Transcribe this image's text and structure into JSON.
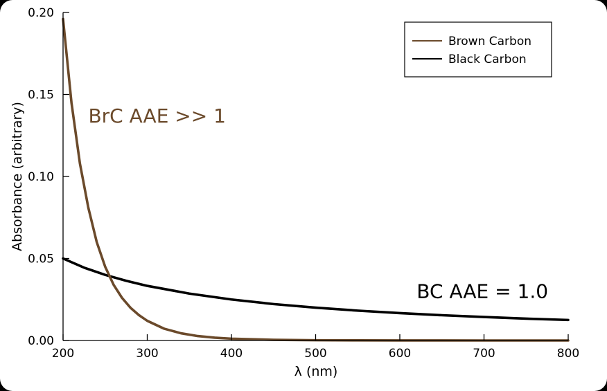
{
  "chart_data": {
    "type": "line",
    "title": "",
    "xlabel": "λ (nm)",
    "ylabel": "Absorbance (arbitrary)",
    "xlim": [
      200,
      800
    ],
    "ylim": [
      0.0,
      0.2
    ],
    "x_ticks": [
      200,
      300,
      400,
      500,
      600,
      700,
      800
    ],
    "x_tick_labels": [
      "200",
      "300",
      "400",
      "500",
      "600",
      "700",
      "800"
    ],
    "y_ticks": [
      0.0,
      0.05,
      0.1,
      0.15,
      0.2
    ],
    "y_tick_labels": [
      "0.00",
      "0.05",
      "0.10",
      "0.15",
      "0.20"
    ],
    "grid": false,
    "legend_position": "top-right",
    "series": [
      {
        "name": "Brown Carbon",
        "color": "#6b4a2b",
        "x": [
          200,
          210,
          220,
          230,
          240,
          250,
          260,
          270,
          280,
          290,
          300,
          320,
          340,
          360,
          380,
          400,
          450,
          500,
          550,
          600,
          650,
          700,
          750,
          800
        ],
        "y": [
          0.196,
          0.145,
          0.108,
          0.081,
          0.06,
          0.045,
          0.034,
          0.026,
          0.02,
          0.0155,
          0.012,
          0.0072,
          0.0044,
          0.0027,
          0.0017,
          0.0011,
          0.0004,
          0.00016,
          7e-05,
          3e-05,
          1e-05,
          0.0,
          0.0,
          0.0
        ]
      },
      {
        "name": "Black Carbon",
        "color": "#000000",
        "x": [
          200,
          225,
          250,
          275,
          300,
          350,
          400,
          450,
          500,
          550,
          600,
          650,
          700,
          750,
          800
        ],
        "y": [
          0.05,
          0.0444,
          0.04,
          0.0364,
          0.0333,
          0.0286,
          0.025,
          0.0222,
          0.02,
          0.0182,
          0.0167,
          0.0154,
          0.0143,
          0.0133,
          0.0125
        ]
      }
    ],
    "annotations": [
      {
        "text": "BrC AAE >> 1",
        "x": 230,
        "y": 0.133,
        "color": "#6b4a2b"
      },
      {
        "text": "BC AAE = 1.0",
        "x": 620,
        "y": 0.026,
        "color": "#000000"
      }
    ]
  }
}
